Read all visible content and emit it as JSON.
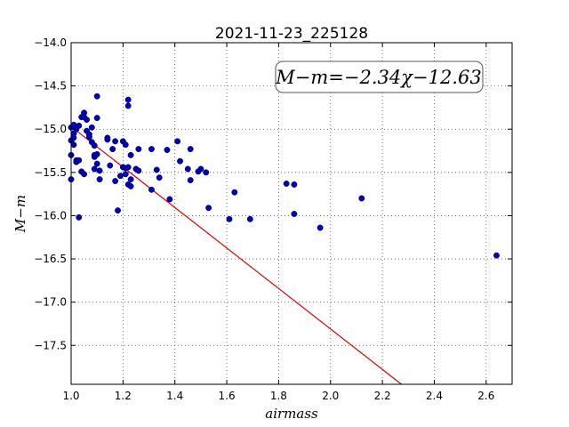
{
  "chart_data": {
    "type": "scatter",
    "title": "2021-11-23_225128",
    "xlabel": "airmass",
    "ylabel": "M−m",
    "annotation": "M−m=−2.34χ−12.63",
    "xlim": [
      1.0,
      2.7
    ],
    "ylim": [
      -14.0,
      -17.95
    ],
    "x_ticks": [
      1.0,
      1.2,
      1.4,
      1.6,
      1.8,
      2.0,
      2.2,
      2.4,
      2.6
    ],
    "x_tick_labels": [
      "1.0",
      "1.2",
      "1.4",
      "1.6",
      "1.8",
      "2.0",
      "2.2",
      "2.4",
      "2.6"
    ],
    "y_ticks": [
      -14.0,
      -14.5,
      -15.0,
      -15.5,
      -16.0,
      -16.5,
      -17.0,
      -17.5
    ],
    "y_tick_labels": [
      "−14.0",
      "−14.5",
      "−15.0",
      "−15.5",
      "−16.0",
      "−16.5",
      "−17.0",
      "−17.5"
    ],
    "grid": true,
    "point_color": "#0000bf",
    "line_color": "#e00000",
    "fit": {
      "slope": -2.34,
      "intercept": -12.63
    },
    "points": [
      [
        1.0,
        -15.13
      ],
      [
        1.0,
        -14.98
      ],
      [
        1.0,
        -15.58
      ],
      [
        1.0,
        -15.3
      ],
      [
        1.01,
        -14.95
      ],
      [
        1.01,
        -15.05
      ],
      [
        1.01,
        -15.1
      ],
      [
        1.01,
        -15.18
      ],
      [
        1.01,
        -15.05
      ],
      [
        1.02,
        -15.0
      ],
      [
        1.02,
        -15.36
      ],
      [
        1.02,
        -15.38
      ],
      [
        1.03,
        -15.36
      ],
      [
        1.03,
        -16.02
      ],
      [
        1.03,
        -14.96
      ],
      [
        1.04,
        -14.86
      ],
      [
        1.04,
        -15.49
      ],
      [
        1.05,
        -15.52
      ],
      [
        1.05,
        -14.81
      ],
      [
        1.05,
        -14.86
      ],
      [
        1.06,
        -14.89
      ],
      [
        1.06,
        -15.02
      ],
      [
        1.07,
        -15.06
      ],
      [
        1.07,
        -15.09
      ],
      [
        1.08,
        -15.15
      ],
      [
        1.08,
        -14.98
      ],
      [
        1.09,
        -15.19
      ],
      [
        1.09,
        -15.3
      ],
      [
        1.09,
        -15.32
      ],
      [
        1.09,
        -15.46
      ],
      [
        1.1,
        -14.62
      ],
      [
        1.1,
        -14.87
      ],
      [
        1.1,
        -15.29
      ],
      [
        1.1,
        -15.4
      ],
      [
        1.11,
        -15.48
      ],
      [
        1.11,
        -15.58
      ],
      [
        1.14,
        -15.1
      ],
      [
        1.14,
        -15.12
      ],
      [
        1.15,
        -15.42
      ],
      [
        1.16,
        -15.23
      ],
      [
        1.17,
        -15.14
      ],
      [
        1.17,
        -15.6
      ],
      [
        1.18,
        -15.94
      ],
      [
        1.19,
        -15.54
      ],
      [
        1.2,
        -15.14
      ],
      [
        1.2,
        -15.44
      ],
      [
        1.21,
        -15.45
      ],
      [
        1.21,
        -15.18
      ],
      [
        1.21,
        -15.52
      ],
      [
        1.22,
        -15.44
      ],
      [
        1.22,
        -15.64
      ],
      [
        1.22,
        -14.66
      ],
      [
        1.22,
        -14.73
      ],
      [
        1.23,
        -15.3
      ],
      [
        1.23,
        -15.58
      ],
      [
        1.23,
        -15.66
      ],
      [
        1.25,
        -15.46
      ],
      [
        1.26,
        -15.48
      ],
      [
        1.26,
        -15.23
      ],
      [
        1.31,
        -15.23
      ],
      [
        1.31,
        -15.7
      ],
      [
        1.33,
        -15.47
      ],
      [
        1.34,
        -15.56
      ],
      [
        1.37,
        -15.24
      ],
      [
        1.38,
        -15.81
      ],
      [
        1.41,
        -15.14
      ],
      [
        1.42,
        -15.37
      ],
      [
        1.45,
        -15.46
      ],
      [
        1.46,
        -15.23
      ],
      [
        1.46,
        -15.59
      ],
      [
        1.49,
        -15.49
      ],
      [
        1.5,
        -15.46
      ],
      [
        1.52,
        -15.5
      ],
      [
        1.53,
        -15.91
      ],
      [
        1.61,
        -16.04
      ],
      [
        1.63,
        -15.73
      ],
      [
        1.69,
        -16.04
      ],
      [
        1.83,
        -15.63
      ],
      [
        1.86,
        -15.64
      ],
      [
        1.86,
        -15.98
      ],
      [
        1.96,
        -16.14
      ],
      [
        2.12,
        -15.8
      ],
      [
        2.64,
        -16.46
      ]
    ]
  }
}
